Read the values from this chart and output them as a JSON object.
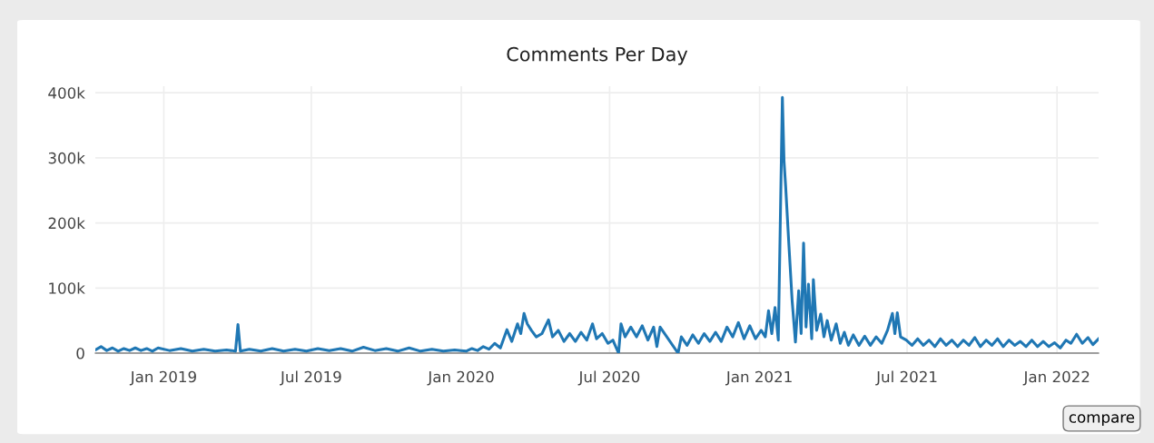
{
  "chart_data": {
    "type": "line",
    "title": "Comments Per Day",
    "x": [
      "2018-10-09",
      "2018-10-16",
      "2018-10-23",
      "2018-10-30",
      "2018-11-06",
      "2018-11-13",
      "2018-11-20",
      "2018-11-27",
      "2018-12-04",
      "2018-12-11",
      "2018-12-18",
      "2018-12-25",
      "2019-01-08",
      "2019-01-22",
      "2019-02-05",
      "2019-02-19",
      "2019-03-05",
      "2019-03-19",
      "2019-03-30",
      "2019-04-02",
      "2019-04-05",
      "2019-04-16",
      "2019-04-30",
      "2019-05-14",
      "2019-05-28",
      "2019-06-11",
      "2019-06-25",
      "2019-07-09",
      "2019-07-23",
      "2019-08-06",
      "2019-08-20",
      "2019-09-03",
      "2019-09-17",
      "2019-10-01",
      "2019-10-15",
      "2019-10-29",
      "2019-11-12",
      "2019-11-26",
      "2019-12-10",
      "2019-12-24",
      "2020-01-07",
      "2020-01-14",
      "2020-01-21",
      "2020-01-28",
      "2020-02-04",
      "2020-02-11",
      "2020-02-18",
      "2020-02-26",
      "2020-03-03",
      "2020-03-10",
      "2020-03-14",
      "2020-03-18",
      "2020-03-22",
      "2020-03-27",
      "2020-04-02",
      "2020-04-09",
      "2020-04-17",
      "2020-04-22",
      "2020-04-29",
      "2020-05-06",
      "2020-05-13",
      "2020-05-20",
      "2020-05-27",
      "2020-06-03",
      "2020-06-10",
      "2020-06-15",
      "2020-06-22",
      "2020-06-29",
      "2020-07-05",
      "2020-07-12",
      "2020-07-15",
      "2020-07-20",
      "2020-07-27",
      "2020-08-03",
      "2020-08-10",
      "2020-08-17",
      "2020-08-24",
      "2020-08-28",
      "2020-09-01",
      "2020-09-23",
      "2020-09-27",
      "2020-10-04",
      "2020-10-11",
      "2020-10-18",
      "2020-10-25",
      "2020-11-01",
      "2020-11-08",
      "2020-11-15",
      "2020-11-22",
      "2020-11-29",
      "2020-12-06",
      "2020-12-13",
      "2020-12-20",
      "2020-12-27",
      "2021-01-03",
      "2021-01-08",
      "2021-01-12",
      "2021-01-16",
      "2021-01-20",
      "2021-01-24",
      "2021-01-29",
      "2021-01-31",
      "2021-02-02",
      "2021-02-06",
      "2021-02-10",
      "2021-02-14",
      "2021-02-18",
      "2021-02-21",
      "2021-02-24",
      "2021-02-27",
      "2021-03-02",
      "2021-03-06",
      "2021-03-08",
      "2021-03-12",
      "2021-03-17",
      "2021-03-21",
      "2021-03-25",
      "2021-03-30",
      "2021-04-05",
      "2021-04-10",
      "2021-04-15",
      "2021-04-20",
      "2021-04-26",
      "2021-05-03",
      "2021-05-10",
      "2021-05-17",
      "2021-05-24",
      "2021-05-31",
      "2021-06-07",
      "2021-06-13",
      "2021-06-16",
      "2021-06-19",
      "2021-06-23",
      "2021-06-30",
      "2021-07-07",
      "2021-07-14",
      "2021-07-21",
      "2021-07-28",
      "2021-08-04",
      "2021-08-11",
      "2021-08-18",
      "2021-08-25",
      "2021-09-01",
      "2021-09-08",
      "2021-09-15",
      "2021-09-22",
      "2021-09-29",
      "2021-10-06",
      "2021-10-13",
      "2021-10-20",
      "2021-10-27",
      "2021-11-03",
      "2021-11-10",
      "2021-11-17",
      "2021-11-24",
      "2021-12-01",
      "2021-12-08",
      "2021-12-15",
      "2021-12-22",
      "2021-12-29",
      "2022-01-05",
      "2022-01-12",
      "2022-01-18",
      "2022-01-25",
      "2022-02-01",
      "2022-02-08",
      "2022-02-14",
      "2022-02-21"
    ],
    "series": [
      {
        "color": "#1f77b4",
        "values": [
          5000,
          10000,
          4000,
          8000,
          3000,
          7000,
          4000,
          8000,
          4000,
          7000,
          3000,
          8000,
          4000,
          7000,
          3000,
          6000,
          3000,
          5000,
          3000,
          44000,
          3000,
          6000,
          3000,
          7000,
          3000,
          6000,
          3000,
          7000,
          4000,
          7000,
          3000,
          9000,
          4000,
          7000,
          3000,
          8000,
          3000,
          6000,
          3000,
          5000,
          3000,
          7000,
          4000,
          10000,
          6000,
          15000,
          8000,
          36000,
          18000,
          45000,
          30000,
          61000,
          45000,
          35000,
          25000,
          30000,
          51000,
          25000,
          35000,
          18000,
          30000,
          18000,
          32000,
          20000,
          45000,
          22000,
          30000,
          15000,
          20000,
          0,
          45000,
          25000,
          40000,
          25000,
          42000,
          20000,
          40000,
          10000,
          40000,
          0,
          25000,
          12000,
          28000,
          15000,
          30000,
          18000,
          32000,
          18000,
          40000,
          25000,
          47000,
          22000,
          42000,
          22000,
          35000,
          25000,
          65000,
          30000,
          70000,
          20000,
          393000,
          295000,
          256000,
          166000,
          80000,
          17000,
          96000,
          30000,
          169000,
          40000,
          106000,
          22000,
          113000,
          35000,
          60000,
          25000,
          50000,
          20000,
          45000,
          15000,
          32000,
          12000,
          28000,
          12000,
          26000,
          12000,
          25000,
          15000,
          35000,
          61000,
          30000,
          62000,
          25000,
          20000,
          12000,
          22000,
          12000,
          20000,
          10000,
          22000,
          12000,
          20000,
          10000,
          20000,
          12000,
          24000,
          10000,
          20000,
          12000,
          22000,
          10000,
          20000,
          12000,
          18000,
          10000,
          20000,
          10000,
          18000,
          10000,
          16000,
          8000,
          20000,
          15000,
          29000,
          15000,
          24000,
          13000,
          22000
        ]
      }
    ],
    "xlim": [
      "2018-10-09",
      "2022-02-21"
    ],
    "xticks": [
      {
        "value": "2019-01-01",
        "label": "Jan 2019"
      },
      {
        "value": "2019-07-01",
        "label": "Jul 2019"
      },
      {
        "value": "2020-01-01",
        "label": "Jan 2020"
      },
      {
        "value": "2020-07-01",
        "label": "Jul 2020"
      },
      {
        "value": "2021-01-01",
        "label": "Jan 2021"
      },
      {
        "value": "2021-07-01",
        "label": "Jul 2021"
      },
      {
        "value": "2022-01-01",
        "label": "Jan 2022"
      }
    ],
    "ylim": [
      0,
      410000
    ],
    "yticks": [
      {
        "value": 0,
        "label": "0"
      },
      {
        "value": 100000,
        "label": "100k"
      },
      {
        "value": 200000,
        "label": "200k"
      },
      {
        "value": 300000,
        "label": "300k"
      },
      {
        "value": 400000,
        "label": "400k"
      }
    ],
    "grid": true,
    "line_style": "solid",
    "marker": "none",
    "annotations": [
      "compare"
    ]
  }
}
